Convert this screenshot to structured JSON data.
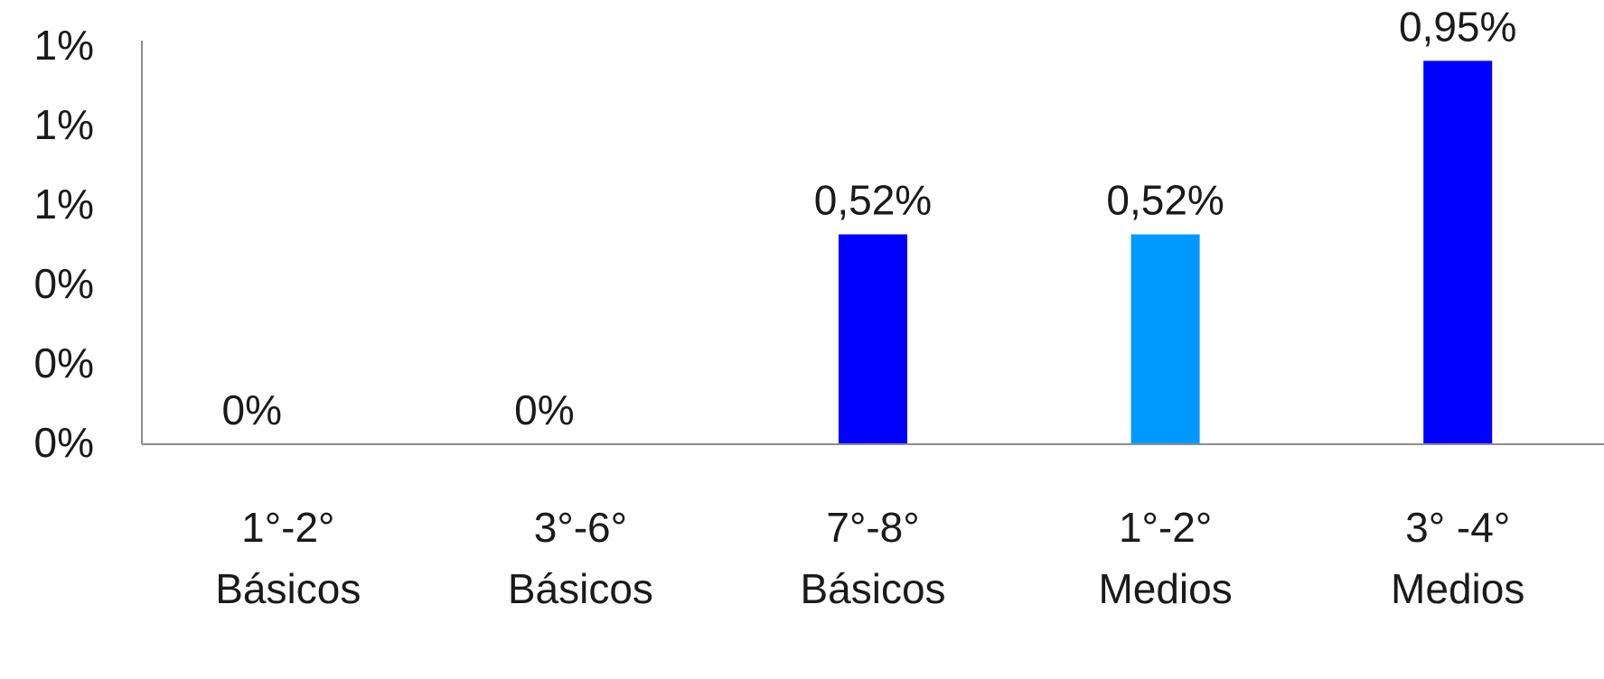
{
  "chart_data": {
    "type": "bar",
    "categories": [
      [
        "1°-2°",
        "Básicos"
      ],
      [
        "3°-6°",
        "Básicos"
      ],
      [
        "7°-8°",
        "Básicos"
      ],
      [
        "1°-2°",
        "Medios"
      ],
      [
        "3° -4°",
        "Medios"
      ]
    ],
    "values": [
      0,
      0,
      0.52,
      0.52,
      0.95
    ],
    "data_labels": [
      "0%",
      "0%",
      "0,52%",
      "0,52%",
      "0,95%"
    ],
    "bar_colors": [
      "#0000ff",
      "#0000ff",
      "#0000ff",
      "#0099ff",
      "#0000ff"
    ],
    "y_tick_labels": [
      "0%",
      "0%",
      "0%",
      "1%",
      "1%",
      "1%"
    ],
    "ylim": [
      0,
      1
    ],
    "grid": false,
    "legend": "none",
    "title": "",
    "xlabel": "",
    "ylabel": ""
  }
}
